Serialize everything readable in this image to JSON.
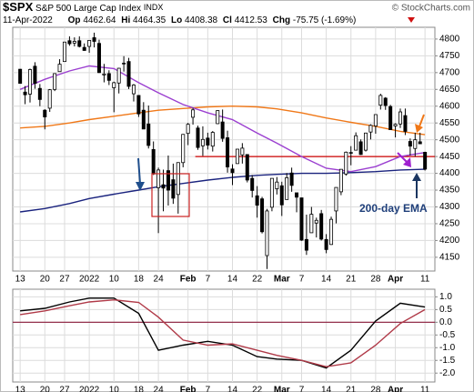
{
  "header": {
    "symbol": "$SPX",
    "name": "S&P 500 Large Cap Index",
    "exchange": "INDX",
    "credit": "© StockCharts.com",
    "date": "11-Apr-2022",
    "open_label": "Op",
    "high_label": "Hi",
    "low_label": "Lo",
    "close_label": "Cl",
    "change_label": "Chg",
    "change": -75.75,
    "change_pct": "(-1.69%)"
  },
  "chart_data": [
    {
      "type": "candlestick",
      "x": [
        0,
        1,
        2,
        3,
        4,
        5,
        6,
        7,
        8,
        9,
        10,
        11,
        12,
        13,
        14,
        15,
        16,
        17,
        18,
        19,
        20,
        21,
        22,
        23,
        24,
        25,
        26,
        27,
        28,
        29,
        30,
        31,
        32,
        33,
        34,
        35,
        36,
        37,
        38,
        39,
        40,
        41,
        42,
        43,
        44,
        45,
        46,
        47,
        48,
        49,
        50,
        51,
        52,
        53,
        54,
        55,
        56,
        57,
        58,
        59,
        60,
        61,
        62,
        63,
        64,
        65,
        66,
        67,
        68,
        69,
        70,
        71,
        72,
        73,
        74,
        75,
        76,
        77,
        78,
        79,
        80,
        81,
        82
      ],
      "open": [
        4710,
        4642,
        4636,
        4719,
        4653,
        4588,
        4594,
        4650,
        4703,
        4733,
        4795,
        4788,
        4795,
        4775,
        4778,
        4804,
        4787,
        4693,
        4697,
        4655,
        4669,
        4728,
        4733,
        4637,
        4632,
        4588,
        4547,
        4471,
        4357,
        4366,
        4408,
        4381,
        4337,
        4432,
        4519,
        4567,
        4535,
        4482,
        4505,
        4481,
        4548,
        4553,
        4506,
        4413,
        4429,
        4455,
        4456,
        4385,
        4333,
        4324,
        4155,
        4299,
        4354,
        4363,
        4322,
        4401,
        4342,
        4327,
        4203,
        4223,
        4252,
        4280,
        4203,
        4188,
        4288,
        4345,
        4398,
        4462,
        4469,
        4494,
        4469,
        4523,
        4541,
        4603,
        4624,
        4599,
        4541,
        4547,
        4572,
        4495,
        4474,
        4494,
        4462.64
      ],
      "high": [
        4711,
        4660,
        4712,
        4731,
        4666,
        4591,
        4651,
        4698,
        4740,
        4791,
        4808,
        4805,
        4808,
        4787,
        4797,
        4819,
        4798,
        4726,
        4707,
        4673,
        4714,
        4749,
        4744,
        4666,
        4632,
        4612,
        4602,
        4495,
        4417,
        4411,
        4453,
        4429,
        4433,
        4517,
        4550,
        4595,
        4542,
        4540,
        4521,
        4526,
        4588,
        4590,
        4527,
        4427,
        4472,
        4490,
        4456,
        4395,
        4362,
        4330,
        4294,
        4385,
        4389,
        4375,
        4401,
        4417,
        4342,
        4327,
        4277,
        4300,
        4268,
        4291,
        4219,
        4271,
        4358,
        4412,
        4465,
        4481,
        4522,
        4501,
        4521,
        4546,
        4575,
        4637,
        4627,
        4604,
        4549,
        4593,
        4593,
        4504,
        4521,
        4521,
        4464.35
      ],
      "low": [
        4667,
        4606,
        4611,
        4652,
        4600,
        4531,
        4583,
        4645,
        4703,
        4733,
        4780,
        4778,
        4775,
        4765,
        4759,
        4775,
        4699,
        4671,
        4663,
        4582,
        4638,
        4703,
        4651,
        4614,
        4568,
        4532,
        4474,
        4395,
        4222,
        4287,
        4304,
        4309,
        4280,
        4418,
        4484,
        4545,
        4470,
        4452,
        4471,
        4465,
        4547,
        4494,
        4402,
        4365,
        4429,
        4429,
        4373,
        4328,
        4268,
        4221,
        4115,
        4287,
        4337,
        4273,
        4322,
        4345,
        4284,
        4199,
        4157,
        4223,
        4209,
        4200,
        4162,
        4187,
        4251,
        4335,
        4393,
        4424,
        4469,
        4455,
        4465,
        4501,
        4518,
        4590,
        4589,
        4530,
        4507,
        4535,
        4514,
        4453,
        4450,
        4487,
        4408.38
      ],
      "close": [
        4668,
        4634,
        4709,
        4668,
        4620,
        4568,
        4649,
        4697,
        4725,
        4791,
        4786,
        4793,
        4778,
        4766,
        4796,
        4793,
        4700,
        4696,
        4677,
        4670,
        4713,
        4726,
        4659,
        4663,
        4577,
        4532,
        4483,
        4398,
        4410,
        4356,
        4350,
        4326,
        4432,
        4516,
        4546,
        4589,
        4477,
        4501,
        4484,
        4522,
        4587,
        4504,
        4419,
        4402,
        4472,
        4475,
        4380,
        4349,
        4305,
        4226,
        4288,
        4385,
        4374,
        4306,
        4387,
        4364,
        4329,
        4201,
        4171,
        4278,
        4260,
        4204,
        4173,
        4263,
        4358,
        4412,
        4463,
        4461,
        4512,
        4456,
        4520,
        4543,
        4575,
        4632,
        4602,
        4530,
        4546,
        4583,
        4525,
        4481,
        4500,
        4488,
        4412.53
      ],
      "color": "#000000",
      "series": [
        {
          "color": "#f07818",
          "x": [
            0,
            5,
            10,
            14,
            19,
            24,
            28,
            33,
            38,
            43,
            48,
            52,
            57,
            62,
            67,
            72,
            77,
            82
          ],
          "values": [
            4535,
            4540,
            4550,
            4560,
            4570,
            4580,
            4588,
            4593,
            4598,
            4600,
            4598,
            4592,
            4580,
            4565,
            4552,
            4540,
            4525,
            4515
          ]
        },
        {
          "color": "#9b3fd0",
          "x": [
            0,
            5,
            10,
            14,
            19,
            24,
            28,
            33,
            38,
            43,
            48,
            52,
            57,
            62,
            67,
            72,
            77,
            82
          ],
          "values": [
            4650,
            4680,
            4705,
            4720,
            4712,
            4670,
            4640,
            4605,
            4580,
            4560,
            4520,
            4490,
            4450,
            4415,
            4405,
            4420,
            4450,
            4462
          ]
        },
        {
          "color": "#1a237e",
          "x": [
            0,
            5,
            10,
            14,
            19,
            24,
            28,
            33,
            38,
            43,
            48,
            52,
            57,
            62,
            67,
            72,
            77,
            82
          ],
          "values": [
            4285,
            4295,
            4310,
            4325,
            4338,
            4350,
            4360,
            4370,
            4380,
            4388,
            4394,
            4397,
            4400,
            4400,
            4402,
            4405,
            4410,
            4412
          ]
        }
      ],
      "hline": {
        "value": 4450,
        "color": "#cc0000"
      },
      "annotation": "200-day EMA",
      "xlim": [
        -1.5,
        84
      ],
      "xticks": [
        {
          "value": 0,
          "label": "13"
        },
        {
          "value": 5,
          "label": "20"
        },
        {
          "value": 9,
          "label": "27"
        },
        {
          "value": 14,
          "label": "2022"
        },
        {
          "value": 19,
          "label": "10"
        },
        {
          "value": 24,
          "label": "18"
        },
        {
          "value": 28,
          "label": "24"
        },
        {
          "value": 34,
          "label": "Feb"
        },
        {
          "value": 38,
          "label": "7"
        },
        {
          "value": 43,
          "label": "14"
        },
        {
          "value": 48,
          "label": "22"
        },
        {
          "value": 53,
          "label": "Mar"
        },
        {
          "value": 57,
          "label": "7"
        },
        {
          "value": 62,
          "label": "14"
        },
        {
          "value": 67,
          "label": "21"
        },
        {
          "value": 72,
          "label": "28"
        },
        {
          "value": 76,
          "label": "Apr"
        },
        {
          "value": 82,
          "label": "11"
        }
      ],
      "ylim": [
        4109,
        4835
      ],
      "yticks": [
        4150,
        4200,
        4250,
        4300,
        4350,
        4400,
        4450,
        4500,
        4550,
        4600,
        4650,
        4700,
        4750,
        4800
      ],
      "grid": true
    },
    {
      "type": "line",
      "series": [
        {
          "color": "#000000",
          "x": [
            0,
            5,
            10,
            14,
            19,
            24,
            28,
            33,
            38,
            43,
            48,
            52,
            57,
            62,
            67,
            72,
            77,
            82
          ],
          "values": [
            0.45,
            0.55,
            0.8,
            0.95,
            0.95,
            0.35,
            -1.1,
            -0.9,
            -0.75,
            -0.9,
            -1.35,
            -1.45,
            -1.5,
            -1.8,
            -1.1,
            0.05,
            0.75,
            0.6
          ]
        },
        {
          "color": "#b03a48",
          "x": [
            0,
            5,
            10,
            14,
            19,
            24,
            28,
            33,
            38,
            43,
            48,
            52,
            57,
            62,
            67,
            72,
            77,
            82
          ],
          "values": [
            0.3,
            0.45,
            0.65,
            0.8,
            0.88,
            0.78,
            0.2,
            -0.7,
            -0.9,
            -0.85,
            -1.1,
            -1.3,
            -1.5,
            -1.75,
            -1.6,
            -0.9,
            -0.05,
            0.5
          ]
        }
      ],
      "hline": {
        "value": 0,
        "color": "#8b1a3a"
      },
      "ylim": [
        -2.35,
        1.3
      ],
      "yticks": [
        {
          "value": 1,
          "label": "1.0"
        },
        0.5,
        {
          "value": 0,
          "label": "0.0"
        },
        -0.5,
        {
          "value": -1,
          "label": "-1.0"
        },
        -1.5,
        {
          "value": -2,
          "label": "-2.0"
        }
      ],
      "grid": true
    }
  ]
}
